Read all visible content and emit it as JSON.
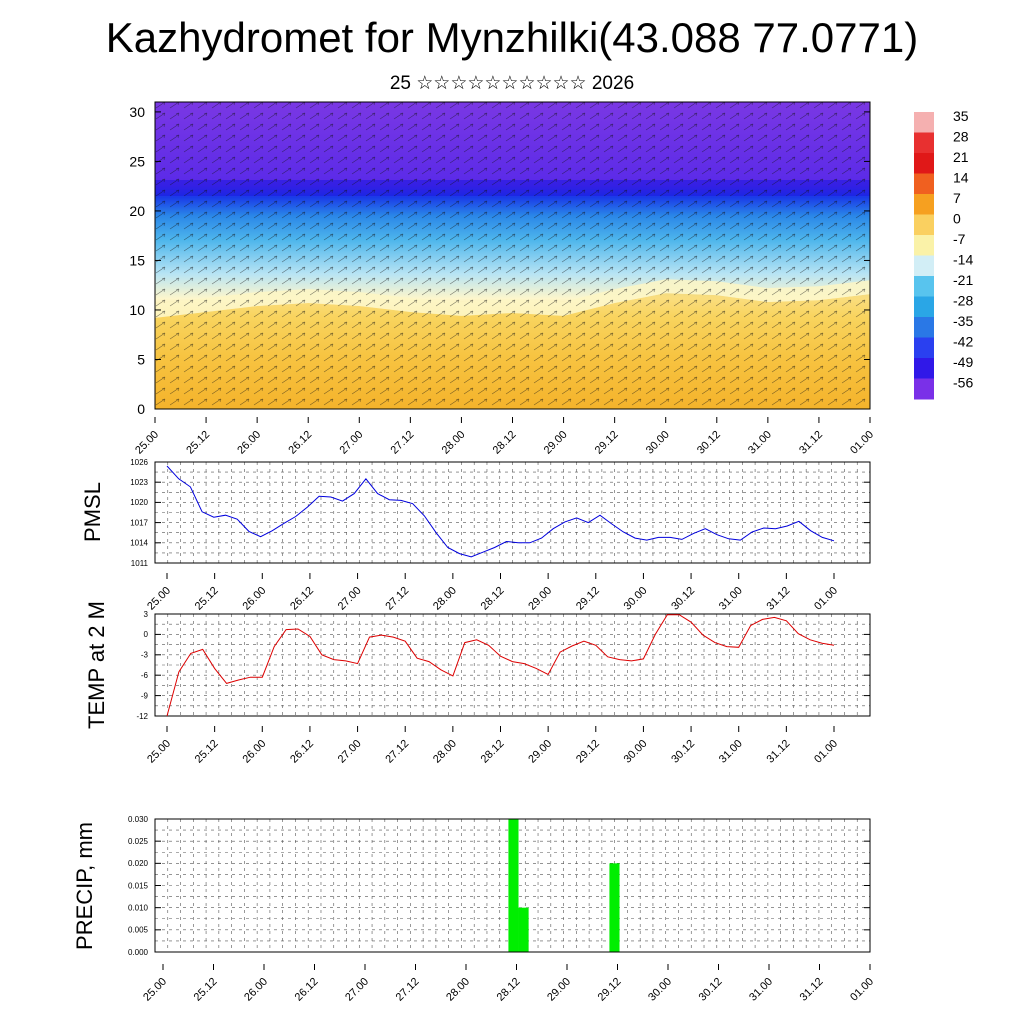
{
  "header": {
    "title": "Kazhydromet for Mynzhilki(43.088 77.0771)",
    "subtitle": "25 ☆☆☆☆☆☆☆☆☆☆ 2026"
  },
  "time_ticks": [
    "25.00",
    "25.12",
    "26.00",
    "26.12",
    "27.00",
    "27.12",
    "28.00",
    "28.12",
    "29.00",
    "29.12",
    "30.00",
    "30.12",
    "31.00",
    "31.12",
    "01.00"
  ],
  "colors": {
    "pmsl_line": "#0000dd",
    "temp_line": "#dd0000",
    "precip_bar": "#00ee00"
  },
  "chart_data": [
    {
      "type": "heatmap",
      "title": "",
      "xlabel": "",
      "ylabel": "",
      "x_ticks": [
        "25.00",
        "25.12",
        "26.00",
        "26.12",
        "27.00",
        "27.12",
        "28.00",
        "28.12",
        "29.00",
        "29.12",
        "30.00",
        "30.12",
        "31.00",
        "31.12",
        "01.00"
      ],
      "y_ticks": [
        "0",
        "5",
        "10",
        "15",
        "20",
        "25",
        "30"
      ],
      "ylim": [
        0,
        31
      ],
      "colorbar_labels": [
        "35",
        "28",
        "21",
        "14",
        "7",
        "0",
        "-7",
        "-14",
        "-21",
        "-28",
        "-35",
        "-42",
        "-49",
        "-56"
      ],
      "colorbar_colors": [
        "#f5b0b0",
        "#e83030",
        "#e01818",
        "#f06020",
        "#f6a020",
        "#fad060",
        "#faf2a8",
        "#d2eef6",
        "#58c4ee",
        "#2aa6e6",
        "#2a78e6",
        "#2a40f0",
        "#3018e8",
        "#7a30e8"
      ],
      "freezing_level_x": [
        0,
        0.5,
        1,
        1.5,
        2,
        2.5,
        3,
        3.5,
        4,
        4.5,
        5,
        5.5,
        6,
        6.5,
        7
      ],
      "freezing_level_y": [
        9.8,
        10.4,
        11.0,
        11.3,
        11.0,
        10.4,
        10.0,
        10.3,
        10.0,
        11.3,
        12.3,
        12.1,
        11.4,
        11.6,
        12.2
      ]
    },
    {
      "type": "line",
      "ylabel": "PMSL",
      "ylim": [
        1011,
        1026
      ],
      "y_ticks": [
        "1011",
        "1014",
        "1017",
        "1020",
        "1023",
        "1026"
      ],
      "x_ticks": [
        "25.00",
        "25.12",
        "26.00",
        "26.12",
        "27.00",
        "27.12",
        "28.00",
        "28.12",
        "29.00",
        "29.12",
        "30.00",
        "30.12",
        "31.00",
        "31.12",
        "01.00"
      ],
      "series": [
        {
          "values": [
            1025.4,
            1023.5,
            1022.3,
            1018.6,
            1017.8,
            1018.1,
            1017.5,
            1015.7,
            1014.9,
            1015.8,
            1016.9,
            1017.9,
            1019.3,
            1020.9,
            1020.8,
            1020.2,
            1021.3,
            1023.5,
            1021.3,
            1020.4,
            1020.3,
            1019.8,
            1018.0,
            1015.5,
            1013.3,
            1012.4,
            1011.9,
            1012.6,
            1013.3,
            1014.2,
            1014.0,
            1014.0,
            1014.7,
            1016.1,
            1017.1,
            1017.7,
            1017.0,
            1018.1,
            1016.8,
            1015.6,
            1014.7,
            1014.4,
            1014.8,
            1014.8,
            1014.5,
            1015.4,
            1016.1,
            1015.2,
            1014.6,
            1014.4,
            1015.6,
            1016.2,
            1016.1,
            1016.5,
            1017.2,
            1015.8,
            1014.8,
            1014.3
          ]
        }
      ]
    },
    {
      "type": "line",
      "ylabel": "TEMP at 2 M",
      "ylim": [
        -12,
        3
      ],
      "y_ticks": [
        "-12",
        "-9",
        "-6",
        "-3",
        "0",
        "3"
      ],
      "x_ticks": [
        "25.00",
        "25.12",
        "26.00",
        "26.12",
        "27.00",
        "27.12",
        "28.00",
        "28.12",
        "29.00",
        "29.12",
        "30.00",
        "30.12",
        "31.00",
        "31.12",
        "01.00"
      ],
      "series": [
        {
          "values": [
            -12.0,
            -5.5,
            -2.8,
            -2.2,
            -5.0,
            -7.2,
            -6.7,
            -6.3,
            -6.3,
            -1.8,
            0.7,
            0.8,
            -0.3,
            -3.0,
            -3.7,
            -3.9,
            -4.3,
            -0.4,
            -0.1,
            -0.4,
            -1.0,
            -3.5,
            -4.0,
            -5.2,
            -6.1,
            -1.2,
            -0.8,
            -1.6,
            -3.2,
            -4.0,
            -4.3,
            -5.0,
            -5.9,
            -2.6,
            -1.7,
            -1.0,
            -1.6,
            -3.3,
            -3.7,
            -3.9,
            -3.6,
            0.0,
            2.9,
            2.9,
            1.8,
            -0.1,
            -1.2,
            -1.8,
            -1.9,
            1.3,
            2.2,
            2.5,
            2.0,
            0.1,
            -0.8,
            -1.3,
            -1.6
          ]
        }
      ]
    },
    {
      "type": "bar",
      "ylabel": "PRECIP, mm",
      "ylim": [
        0,
        0.03
      ],
      "y_ticks": [
        "0.000",
        "0.005",
        "0.010",
        "0.015",
        "0.020",
        "0.025",
        "0.030"
      ],
      "x_ticks": [
        "25.00",
        "25.12",
        "26.00",
        "26.12",
        "27.00",
        "27.12",
        "28.00",
        "28.12",
        "29.00",
        "29.12",
        "30.00",
        "30.12",
        "31.00",
        "31.12",
        "01.00"
      ],
      "bars": [
        {
          "t_start": 3.42,
          "t_end": 3.52,
          "value": 0.03
        },
        {
          "t_start": 3.52,
          "t_end": 3.62,
          "value": 0.01
        },
        {
          "t_start": 4.42,
          "t_end": 4.52,
          "value": 0.02
        }
      ]
    }
  ]
}
